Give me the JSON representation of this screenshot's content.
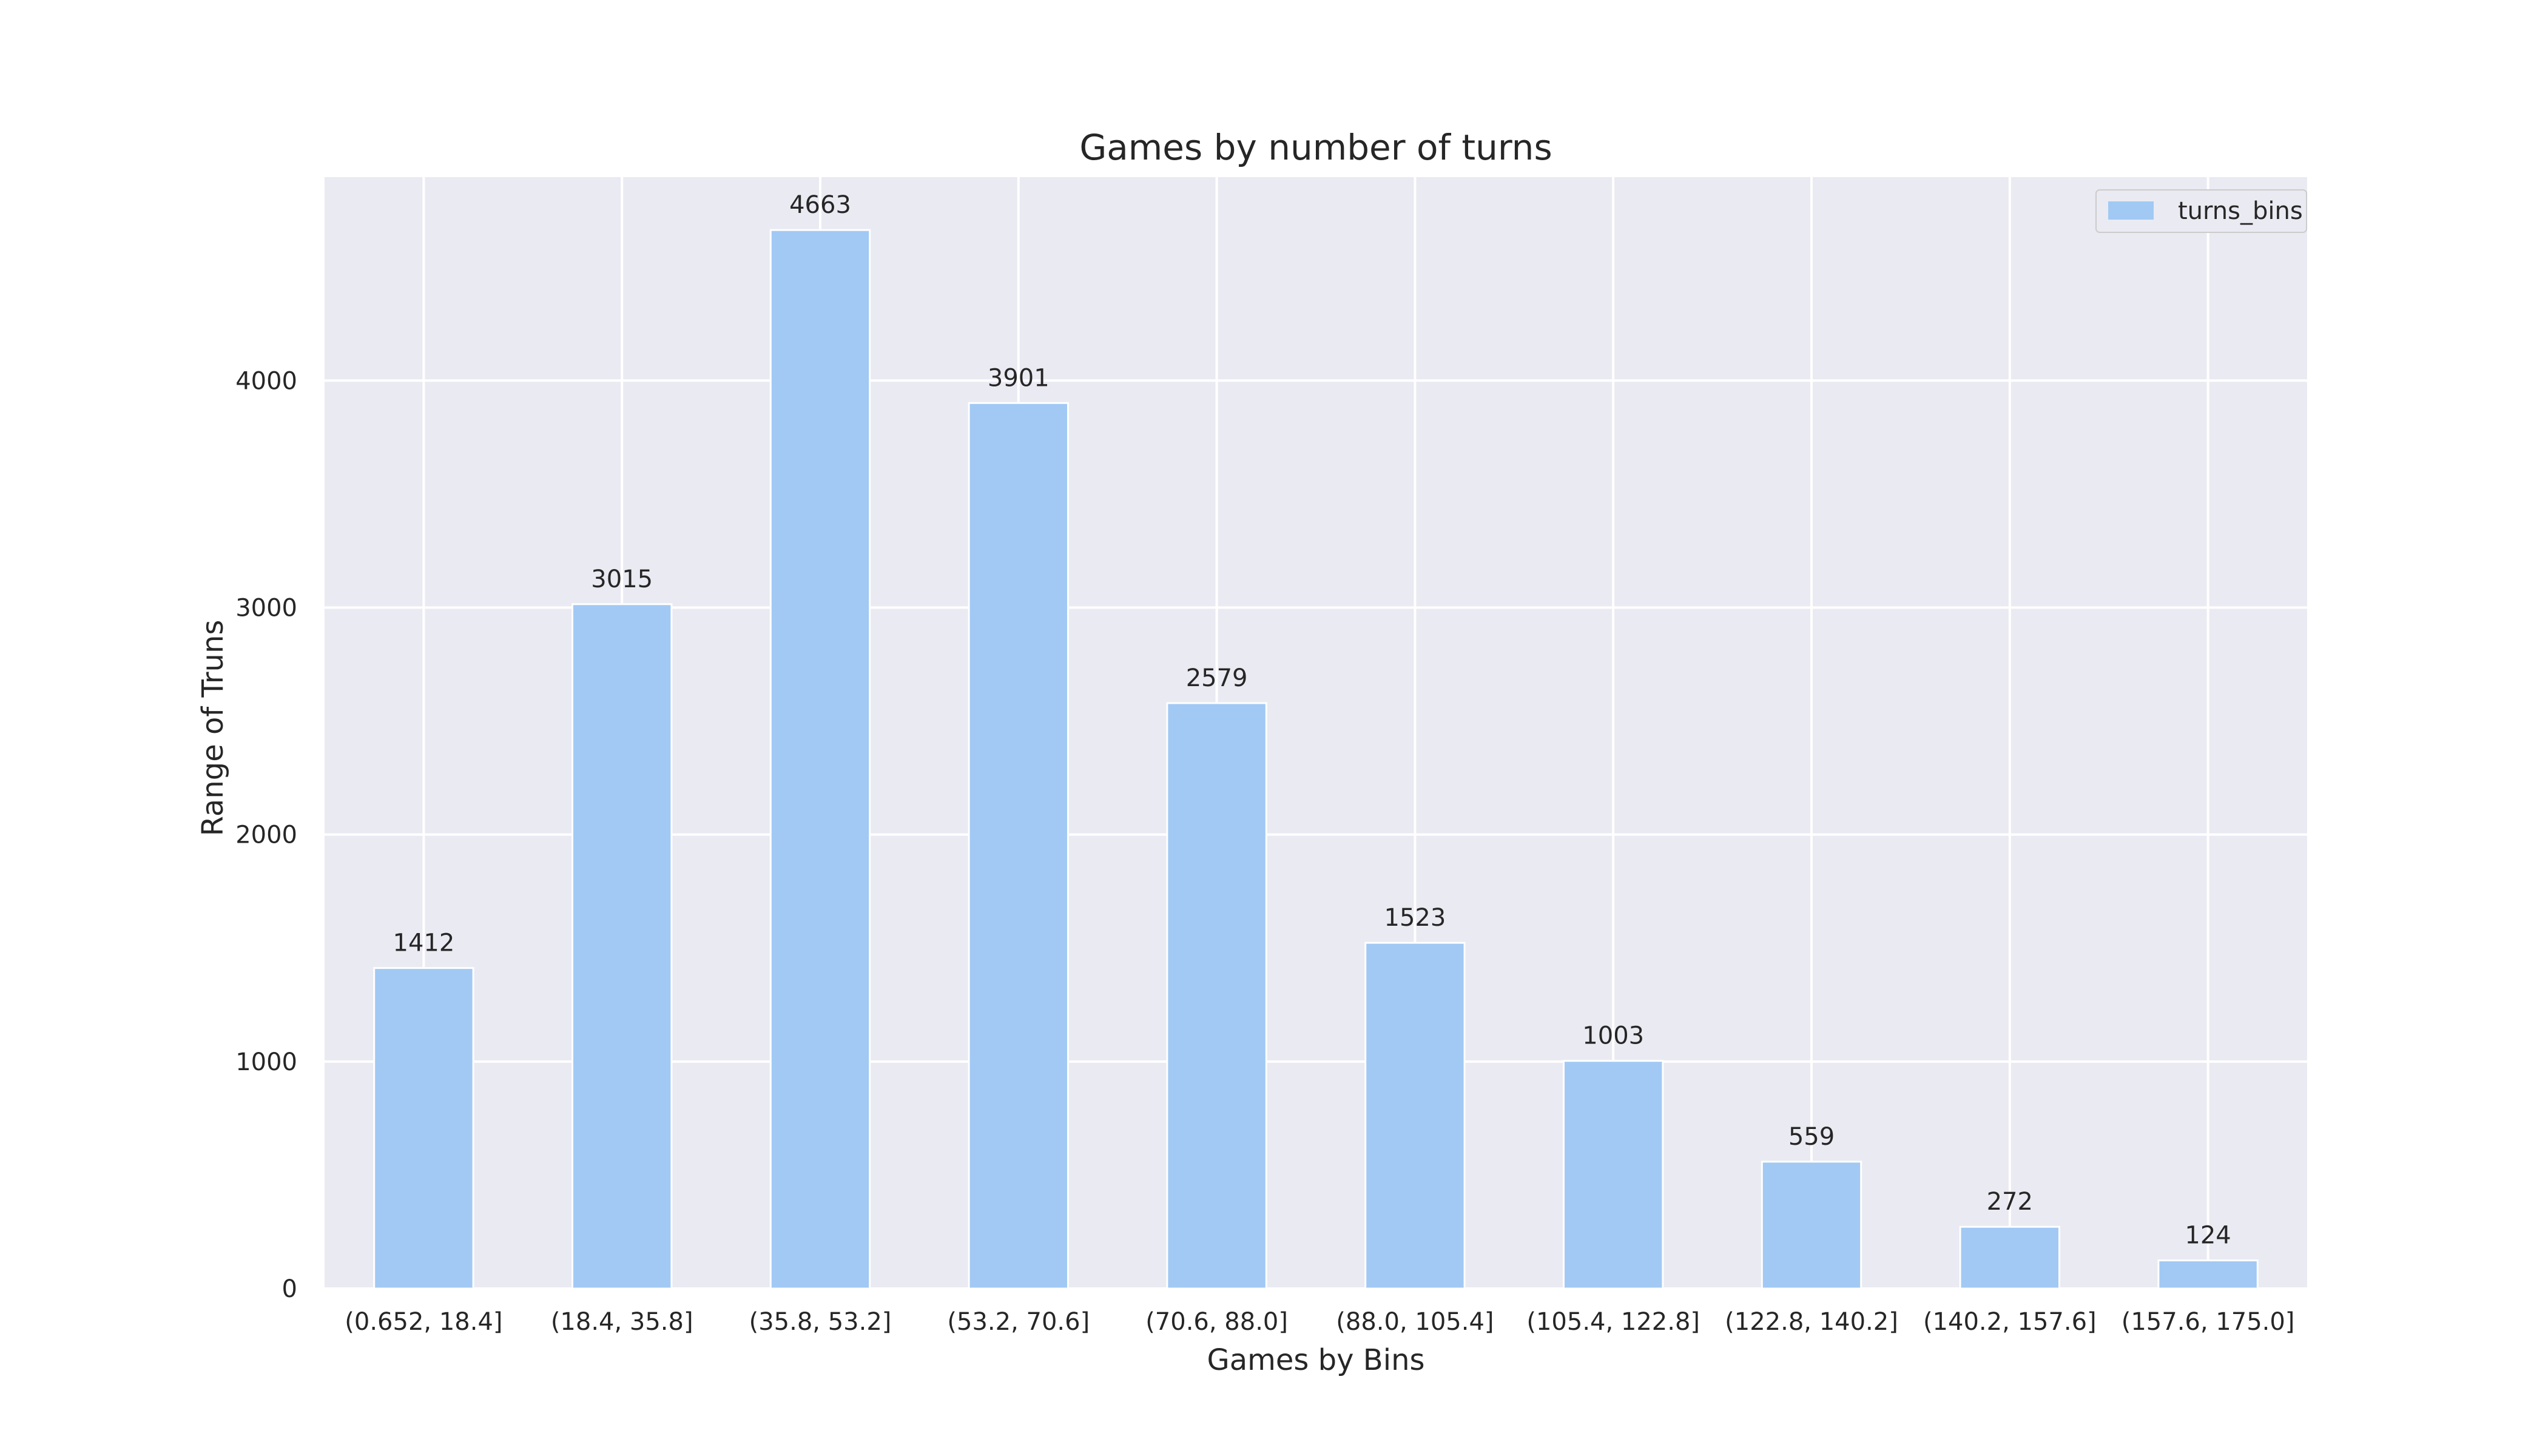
{
  "chart_data": {
    "type": "bar",
    "title": "Games by number of turns",
    "xlabel": "Games by Bins",
    "ylabel": "Range of Truns",
    "categories": [
      "(0.652, 18.4]",
      "(18.4, 35.8]",
      "(35.8, 53.2]",
      "(53.2, 70.6]",
      "(70.6, 88.0]",
      "(88.0, 105.4]",
      "(105.4, 122.8]",
      "(122.8, 140.2]",
      "(140.2, 157.6]",
      "(157.6, 175.0]"
    ],
    "series": [
      {
        "name": "turns_bins",
        "values": [
          1412,
          3015,
          4663,
          3901,
          2579,
          1523,
          1003,
          559,
          272,
          124
        ]
      }
    ],
    "ylim": [
      0,
      4896
    ],
    "yticks": [
      0,
      1000,
      2000,
      3000,
      4000
    ],
    "grid": true,
    "legend": "top-right",
    "bar_color": "#a1c9f4",
    "background_color": "#eaeaf2",
    "grid_color": "#ffffff"
  }
}
